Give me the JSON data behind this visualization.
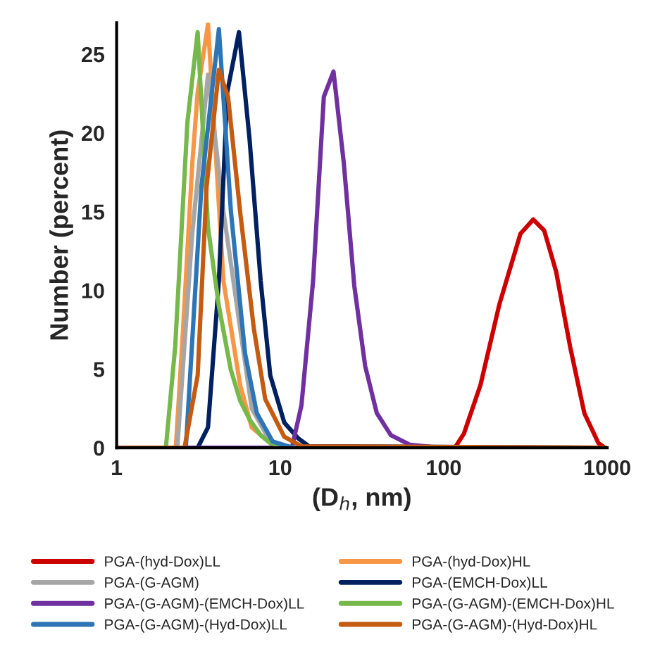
{
  "chart_data": {
    "type": "line",
    "xlabel": "(D$_{h}$, nm)",
    "ylabel": "Number (percent)",
    "log": "x",
    "xlim": [
      1,
      1000
    ],
    "xticks": [
      1,
      10,
      100,
      1000
    ],
    "ylim": [
      0,
      27
    ],
    "yticks": [
      0,
      5,
      10,
      15,
      20,
      25
    ],
    "grid": false,
    "legend": "bottom",
    "marker": "none",
    "line_style": "solid",
    "series": [
      {
        "name": "PGA-(hyd-Dox)LL",
        "color": "#cc0000",
        "x": [
          1,
          117,
          133,
          168,
          219,
          295,
          353,
          412,
          487,
          594,
          725,
          884,
          971,
          1000
        ],
        "values": [
          0,
          0,
          0.9,
          4,
          9.1,
          13.6,
          14.5,
          13.8,
          11.2,
          6.4,
          2.2,
          0.3,
          0,
          0
        ]
      },
      {
        "name": "PGA-(hyd-Dox)HL",
        "color": "#f79646",
        "x": [
          1,
          2.3,
          2.55,
          2.9,
          3.13,
          3.62,
          4.5,
          5.69,
          6.7,
          8.7,
          11,
          1000
        ],
        "values": [
          0,
          0,
          7.6,
          18,
          22.6,
          26.9,
          10.6,
          4,
          1.3,
          0.3,
          0,
          0
        ]
      },
      {
        "name": "PGA-(G-AGM)",
        "color": "#a6a6a6",
        "x": [
          1,
          2.35,
          2.9,
          3.62,
          4.5,
          5.69,
          6.7,
          8.7,
          11,
          1000
        ],
        "values": [
          0,
          0,
          13.6,
          23.7,
          15,
          7.6,
          2.5,
          0.4,
          0,
          0
        ]
      },
      {
        "name": "PGA-(EMCH-Dox)LL",
        "color": "#002060",
        "x": [
          1,
          3.13,
          3.62,
          4.22,
          4.75,
          5.6,
          6.5,
          7.6,
          8.7,
          10.6,
          12.9,
          15,
          1000
        ],
        "values": [
          0,
          0,
          1.3,
          10.6,
          22.6,
          26.4,
          19.6,
          10.6,
          4.6,
          1.6,
          0.6,
          0.1,
          0
        ]
      },
      {
        "name": "PGA-(G-AGM)-(EMCH-Dox)LL",
        "color": "#7030a0",
        "x": [
          1,
          11.8,
          13.5,
          15.9,
          18.5,
          21.2,
          24.5,
          28.4,
          33.1,
          39,
          47.6,
          62,
          98,
          1000
        ],
        "values": [
          0,
          0,
          2.7,
          10.6,
          22.3,
          23.9,
          18.1,
          10.3,
          5.2,
          2.2,
          0.8,
          0.2,
          0,
          0
        ]
      },
      {
        "name": "PGA-(G-AGM)-(EMCH-Dox)HL",
        "color": "#77b84a",
        "x": [
          1,
          2.0,
          2.28,
          2.71,
          3.13,
          3.62,
          4.22,
          4.98,
          5.69,
          6.5,
          7.6,
          8.7,
          10.6,
          12.9,
          1000
        ],
        "values": [
          0,
          0,
          6.4,
          20.7,
          26.4,
          14,
          9,
          5,
          3,
          1.8,
          0.8,
          0.3,
          0.1,
          0,
          0
        ]
      },
      {
        "name": "PGA-(G-AGM)-(Hyd-Dox)LL",
        "color": "#2e75b6",
        "x": [
          1,
          2.65,
          3.3,
          4.22,
          5.0,
          6.1,
          7.2,
          9.0,
          12,
          1000
        ],
        "values": [
          0,
          0,
          16.6,
          26.6,
          15,
          6,
          2.2,
          0.4,
          0,
          0
        ]
      },
      {
        "name": "PGA-(G-AGM)-(Hyd-Dox)HL",
        "color": "#c55a11",
        "x": [
          1,
          2.6,
          3.13,
          3.55,
          4.22,
          4.8,
          5.69,
          6.9,
          8.1,
          10.6,
          13.5,
          1000
        ],
        "values": [
          0,
          0,
          4.6,
          16.6,
          24,
          22.3,
          15,
          7.6,
          3.1,
          0.7,
          0.1,
          0
        ]
      }
    ]
  }
}
